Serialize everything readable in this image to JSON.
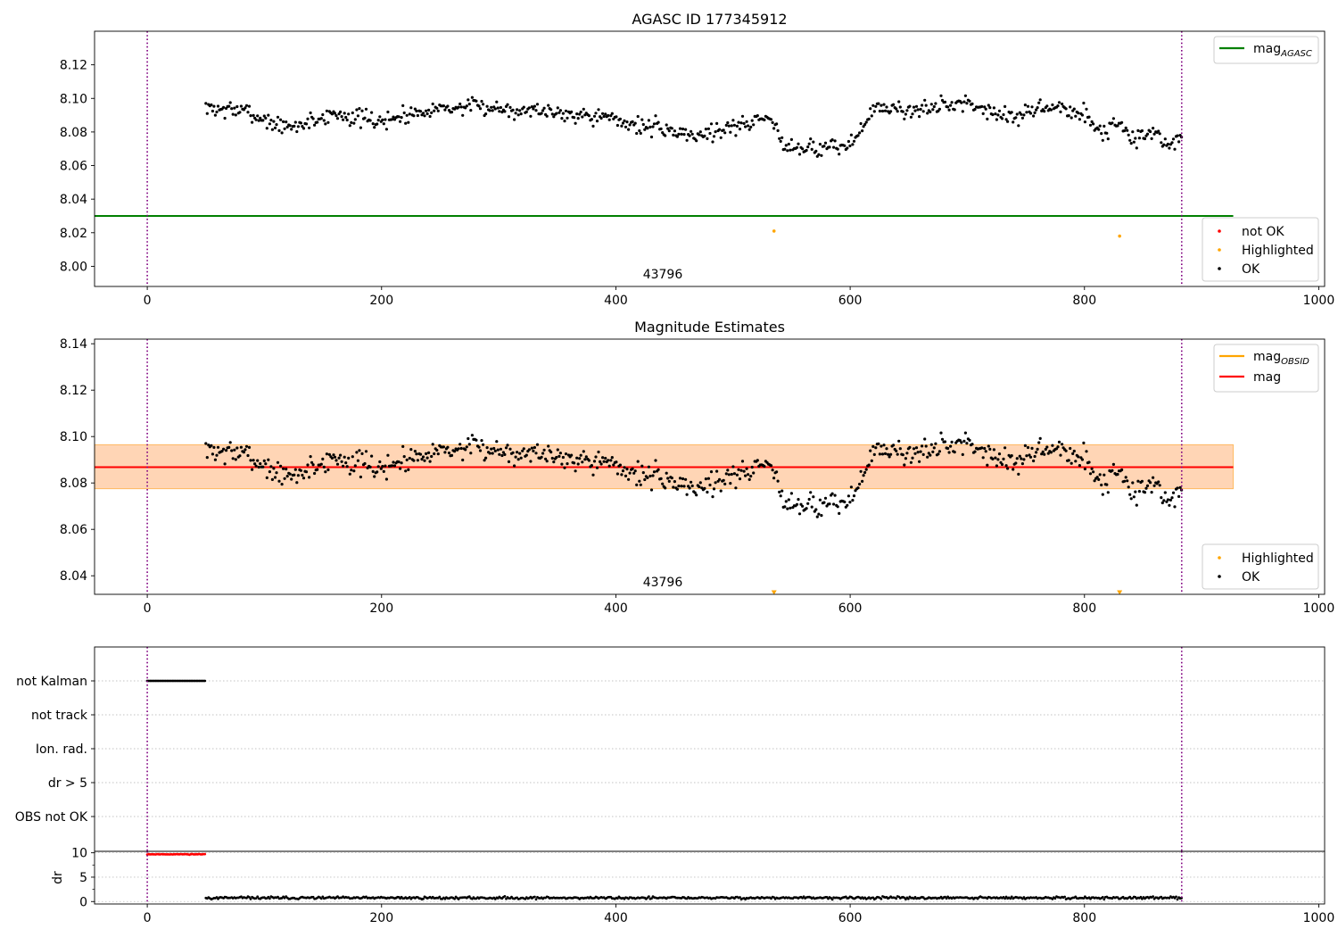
{
  "chart_data": [
    {
      "type": "scatter",
      "title": "AGASC ID 177345912",
      "xlabel": "",
      "ylabel": "",
      "xlim": [
        -45,
        1005
      ],
      "ylim": [
        7.988,
        8.14
      ],
      "xticks": [
        0,
        200,
        400,
        600,
        800,
        1000
      ],
      "yticks": [
        8.0,
        8.02,
        8.04,
        8.06,
        8.08,
        8.1,
        8.12
      ],
      "ytick_decimals": 2,
      "annotation": "43796",
      "vlines": [
        0,
        883
      ],
      "vline_color": "#800080",
      "hlines": [
        {
          "name": "mag_AGASC",
          "y": 8.03,
          "x_range": [
            -45,
            927
          ],
          "color": "#008000"
        }
      ],
      "line_legend": {
        "placement": "top-right",
        "entries": [
          {
            "label": "mag",
            "sub": "AGASC",
            "color": "#008000"
          }
        ]
      },
      "marker_legend": {
        "placement": "bottom-right",
        "entries": [
          {
            "label": "not OK",
            "color": "#ff0000"
          },
          {
            "label": "Highlighted",
            "color": "#ffa500"
          },
          {
            "label": "OK",
            "color": "#000000"
          }
        ]
      },
      "highlighted_points": [
        {
          "x": 535,
          "y": 8.021,
          "marker": "dot",
          "color": "#ffa500"
        },
        {
          "x": 830,
          "y": 8.018,
          "marker": "dot",
          "color": "#ffa500"
        }
      ],
      "series": [
        {
          "name": "OK",
          "color": "#000000",
          "x_range": [
            50,
            883
          ],
          "step": 1.16,
          "anchors": [
            [
              50,
              8.094
            ],
            [
              80,
              8.093
            ],
            [
              120,
              8.082
            ],
            [
              160,
              8.091
            ],
            [
              200,
              8.086
            ],
            [
              240,
              8.094
            ],
            [
              280,
              8.095
            ],
            [
              330,
              8.093
            ],
            [
              380,
              8.09
            ],
            [
              420,
              8.084
            ],
            [
              470,
              8.078
            ],
            [
              510,
              8.085
            ],
            [
              530,
              8.089
            ],
            [
              545,
              8.072
            ],
            [
              575,
              8.07
            ],
            [
              600,
              8.072
            ],
            [
              620,
              8.094
            ],
            [
              660,
              8.093
            ],
            [
              700,
              8.098
            ],
            [
              740,
              8.088
            ],
            [
              770,
              8.096
            ],
            [
              800,
              8.09
            ],
            [
              815,
              8.08
            ],
            [
              830,
              8.086
            ],
            [
              845,
              8.074
            ],
            [
              860,
              8.082
            ],
            [
              870,
              8.07
            ],
            [
              883,
              8.078
            ]
          ],
          "noise": 0.0065,
          "seed": 7
        }
      ]
    },
    {
      "type": "scatter",
      "title": "Magnitude Estimates",
      "xlabel": "",
      "ylabel": "",
      "xlim": [
        -45,
        1005
      ],
      "ylim": [
        8.032,
        8.142
      ],
      "xticks": [
        0,
        200,
        400,
        600,
        800,
        1000
      ],
      "yticks": [
        8.04,
        8.06,
        8.08,
        8.1,
        8.12,
        8.14
      ],
      "ytick_decimals": 2,
      "annotation": "43796",
      "vlines": [
        0,
        883
      ],
      "vline_color": "#800080",
      "bands": [
        {
          "name": "mag range",
          "y_range": [
            8.0775,
            8.0965
          ],
          "x_range": [
            -45,
            927
          ],
          "color": "#ffc0cb",
          "opacity": 0.45
        },
        {
          "name": "mag_OBSID range",
          "y_range": [
            8.0775,
            8.0965
          ],
          "x_range": [
            -45,
            927
          ],
          "color": "#ffa500",
          "opacity": 0.22
        }
      ],
      "hlines": [
        {
          "name": "mag_OBSID",
          "y": 8.0868,
          "x_range": [
            -45,
            927
          ],
          "color": "#ffa500"
        },
        {
          "name": "mag",
          "y": 8.0868,
          "x_range": [
            -45,
            927
          ],
          "color": "#ff0000"
        }
      ],
      "line_legend": {
        "placement": "top-right",
        "entries": [
          {
            "label": "mag",
            "sub": "OBSID",
            "color": "#ffa500"
          },
          {
            "label": "mag",
            "sub": "",
            "color": "#ff0000"
          }
        ]
      },
      "marker_legend": {
        "placement": "bottom-right",
        "entries": [
          {
            "label": "Highlighted",
            "color": "#ffa500"
          },
          {
            "label": "OK",
            "color": "#000000"
          }
        ]
      },
      "highlighted_points": [
        {
          "x": 535,
          "y": 8.0326,
          "marker": "triangle-down",
          "color": "#ffa500"
        },
        {
          "x": 830,
          "y": 8.0326,
          "marker": "triangle-down",
          "color": "#ffa500"
        }
      ],
      "series": [
        {
          "name": "OK",
          "color": "#000000",
          "x_range": [
            50,
            883
          ],
          "step": 1.16,
          "anchors": [
            [
              50,
              8.094
            ],
            [
              80,
              8.093
            ],
            [
              120,
              8.082
            ],
            [
              160,
              8.091
            ],
            [
              200,
              8.086
            ],
            [
              240,
              8.094
            ],
            [
              280,
              8.095
            ],
            [
              330,
              8.093
            ],
            [
              380,
              8.09
            ],
            [
              420,
              8.084
            ],
            [
              470,
              8.078
            ],
            [
              510,
              8.085
            ],
            [
              530,
              8.089
            ],
            [
              545,
              8.072
            ],
            [
              575,
              8.07
            ],
            [
              600,
              8.072
            ],
            [
              620,
              8.094
            ],
            [
              660,
              8.093
            ],
            [
              700,
              8.098
            ],
            [
              740,
              8.088
            ],
            [
              770,
              8.096
            ],
            [
              800,
              8.09
            ],
            [
              815,
              8.08
            ],
            [
              830,
              8.086
            ],
            [
              845,
              8.074
            ],
            [
              860,
              8.082
            ],
            [
              870,
              8.07
            ],
            [
              883,
              8.078
            ]
          ],
          "noise": 0.0065,
          "seed": 7
        }
      ]
    },
    {
      "type": "scatter",
      "title": "",
      "xlim": [
        -45,
        1005
      ],
      "categories": [
        "not Kalman",
        "not track",
        "Ion. rad.",
        "dr > 5",
        "OBS not OK"
      ],
      "vlines": [
        0,
        883
      ],
      "vline_color": "#800080",
      "flag_points": [
        {
          "category": "not Kalman",
          "x_range": [
            0,
            50
          ],
          "step": 1.2,
          "color": "#000000"
        }
      ]
    },
    {
      "type": "scatter",
      "title": "",
      "xlim": [
        -45,
        1005
      ],
      "ylim": [
        -0.5,
        10.3
      ],
      "ylabel": "dr",
      "xticks": [
        0,
        200,
        400,
        600,
        800,
        1000
      ],
      "yticks": [
        0,
        5,
        10
      ],
      "minor_yticks": [
        2.5,
        7.5
      ],
      "vlines": [
        0,
        883
      ],
      "vline_color": "#800080",
      "series": [
        {
          "name": "dr > 5",
          "color": "#ff0000",
          "x_range": [
            0,
            50
          ],
          "step": 1.2,
          "y": 9.7,
          "noise": 0.08
        },
        {
          "name": "dr",
          "color": "#000000",
          "x_range": [
            50,
            883
          ],
          "step": 1.16,
          "y": 0.75,
          "noise": 0.35
        }
      ]
    }
  ]
}
